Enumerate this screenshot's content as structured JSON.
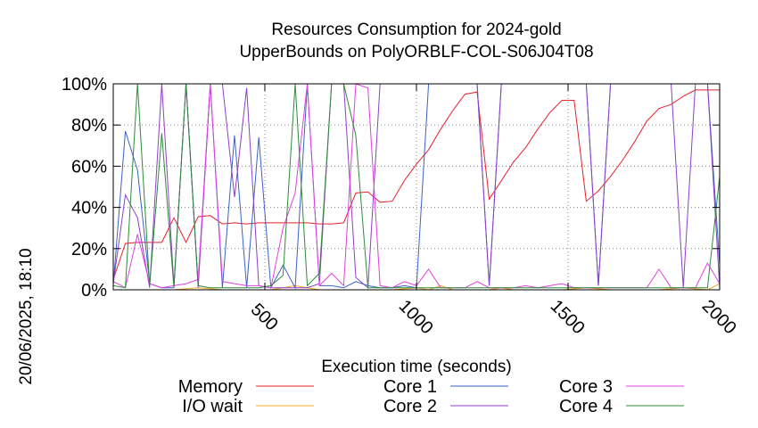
{
  "chart_data": {
    "type": "line",
    "title_lines": [
      "Resources Consumption for 2024-gold",
      "UpperBounds on PolyORBLF-COL-S06J04T08"
    ],
    "xlabel": "Execution time (seconds)",
    "ylabel": "",
    "side_label": "20/06/2025, 18:10",
    "xlim": [
      0,
      2000
    ],
    "ylim": [
      0,
      100
    ],
    "x_ticks": [
      500,
      1000,
      1500,
      2000
    ],
    "y_ticks": [
      0,
      20,
      40,
      60,
      80,
      100
    ],
    "y_tick_labels": [
      "0%",
      "20%",
      "40%",
      "60%",
      "80%",
      "100%"
    ],
    "grid": true,
    "legend_position": "bottom",
    "series": [
      {
        "name": "Memory",
        "color": "#e8202a",
        "x": [
          0,
          40,
          80,
          120,
          160,
          200,
          240,
          280,
          320,
          360,
          400,
          440,
          480,
          520,
          560,
          600,
          640,
          680,
          720,
          760,
          800,
          840,
          880,
          920,
          960,
          1000,
          1040,
          1080,
          1120,
          1160,
          1200,
          1240,
          1280,
          1320,
          1360,
          1400,
          1440,
          1480,
          1520,
          1560,
          1600,
          1640,
          1680,
          1720,
          1760,
          1800,
          1840,
          1880,
          1920,
          1960,
          2000
        ],
        "y": [
          5,
          22.5,
          23,
          23,
          23,
          35,
          23,
          35.5,
          36,
          32,
          32.5,
          32,
          32.5,
          32.5,
          32.5,
          32.5,
          32.5,
          32,
          32,
          32.5,
          47,
          47.5,
          42.5,
          43,
          53,
          61,
          68,
          78,
          87,
          95,
          96,
          44,
          53,
          62,
          69,
          78,
          86,
          92,
          92,
          43,
          48,
          55,
          63,
          72,
          82,
          88,
          90,
          94,
          97,
          97,
          97
        ]
      },
      {
        "name": "I/O wait",
        "color": "#f5a623",
        "x": [
          0,
          40,
          120,
          200,
          280,
          360,
          440,
          520,
          560,
          600,
          680,
          760,
          840,
          920,
          1000,
          1040,
          1080,
          1120,
          1160,
          1240,
          1280,
          1320,
          1400,
          1480,
          1560,
          1640,
          1720,
          1800,
          1880,
          1960,
          2000
        ],
        "y": [
          0,
          0,
          0,
          0,
          1,
          0,
          0,
          0,
          1,
          2,
          0,
          0,
          0,
          0,
          1,
          0,
          2,
          0,
          0,
          0,
          1,
          0,
          0,
          0,
          1,
          0,
          0,
          0,
          1,
          0,
          3
        ]
      },
      {
        "name": "Core 1",
        "color": "#3a62c8",
        "x": [
          0,
          40,
          80,
          120,
          160,
          200,
          240,
          280,
          320,
          360,
          400,
          440,
          480,
          520,
          560,
          600,
          640,
          680,
          720,
          760,
          800,
          840,
          880,
          920,
          960,
          1000,
          1040,
          1080,
          1120,
          1160,
          1200,
          1240,
          1280,
          1320,
          1360,
          1400,
          1440,
          1480,
          1520,
          1560,
          1600,
          1640,
          1680,
          1720,
          1760,
          1800,
          1840,
          1880,
          1920,
          1960,
          2000
        ],
        "y": [
          2,
          77,
          58,
          3,
          1,
          1,
          100,
          2,
          100,
          1,
          75,
          1,
          74,
          1,
          12,
          1,
          100,
          2,
          2,
          1,
          4,
          2,
          1,
          1,
          2,
          1,
          100,
          100,
          100,
          100,
          100,
          2,
          100,
          100,
          100,
          100,
          100,
          100,
          100,
          100,
          2,
          100,
          100,
          100,
          100,
          100,
          100,
          100,
          100,
          100,
          12
        ]
      },
      {
        "name": "Core 2",
        "color": "#8e3fc7",
        "x": [
          0,
          40,
          80,
          120,
          160,
          200,
          240,
          280,
          320,
          360,
          400,
          440,
          480,
          520,
          560,
          600,
          640,
          680,
          720,
          760,
          800,
          840,
          880,
          920,
          960,
          1000,
          1040,
          1080,
          1120,
          1160,
          1200,
          1240,
          1280,
          1320,
          1360,
          1400,
          1440,
          1480,
          1520,
          1560,
          1600,
          1640,
          1680,
          1720,
          1760,
          1800,
          1840,
          1880,
          1920,
          1960,
          2000
        ],
        "y": [
          3,
          46,
          35,
          1,
          100,
          2,
          100,
          1,
          100,
          100,
          45,
          98,
          2,
          1,
          1,
          1,
          1,
          3,
          100,
          100,
          6,
          1,
          100,
          100,
          100,
          100,
          100,
          100,
          100,
          100,
          100,
          2,
          100,
          100,
          100,
          100,
          100,
          100,
          100,
          100,
          2,
          100,
          100,
          100,
          100,
          100,
          100,
          1,
          100,
          100,
          1
        ]
      },
      {
        "name": "Core 3",
        "color": "#e040e0",
        "x": [
          0,
          40,
          80,
          120,
          160,
          200,
          240,
          280,
          320,
          360,
          400,
          440,
          480,
          520,
          560,
          600,
          640,
          680,
          720,
          760,
          800,
          840,
          880,
          920,
          960,
          1000,
          1040,
          1080,
          1120,
          1160,
          1200,
          1240,
          1280,
          1320,
          1360,
          1400,
          1440,
          1480,
          1520,
          1560,
          1600,
          1640,
          1680,
          1720,
          1760,
          1800,
          1840,
          1880,
          1920,
          1960,
          2000
        ],
        "y": [
          4,
          1,
          27,
          3,
          1,
          2,
          3,
          5,
          100,
          4,
          3,
          2,
          2,
          1,
          30,
          47,
          100,
          2,
          8,
          2,
          100,
          98,
          2,
          1,
          4,
          2,
          10,
          1,
          1,
          1,
          4,
          1,
          1,
          1,
          2,
          1,
          2,
          3,
          1,
          1,
          1,
          1,
          1,
          1,
          1,
          10,
          1,
          1,
          1,
          13,
          3
        ]
      },
      {
        "name": "Core 4",
        "color": "#2e8b3a",
        "x": [
          0,
          40,
          80,
          120,
          160,
          200,
          240,
          280,
          320,
          360,
          400,
          440,
          480,
          520,
          560,
          600,
          640,
          680,
          720,
          760,
          800,
          840,
          880,
          920,
          960,
          1000,
          1040,
          1080,
          1120,
          1160,
          1200,
          1240,
          1280,
          1320,
          1360,
          1400,
          1440,
          1480,
          1520,
          1560,
          1600,
          1640,
          1680,
          1720,
          1760,
          1800,
          1840,
          1880,
          1920,
          1960,
          2000
        ],
        "y": [
          2,
          1,
          100,
          2,
          76,
          1,
          100,
          2,
          1,
          1,
          1,
          1,
          1,
          2,
          7,
          100,
          2,
          8,
          100,
          100,
          75,
          1,
          1,
          1,
          1,
          1,
          1,
          1,
          1,
          1,
          1,
          1,
          1,
          1,
          1,
          1,
          1,
          1,
          1,
          1,
          1,
          1,
          1,
          1,
          1,
          1,
          1,
          1,
          1,
          1,
          55
        ]
      }
    ]
  }
}
